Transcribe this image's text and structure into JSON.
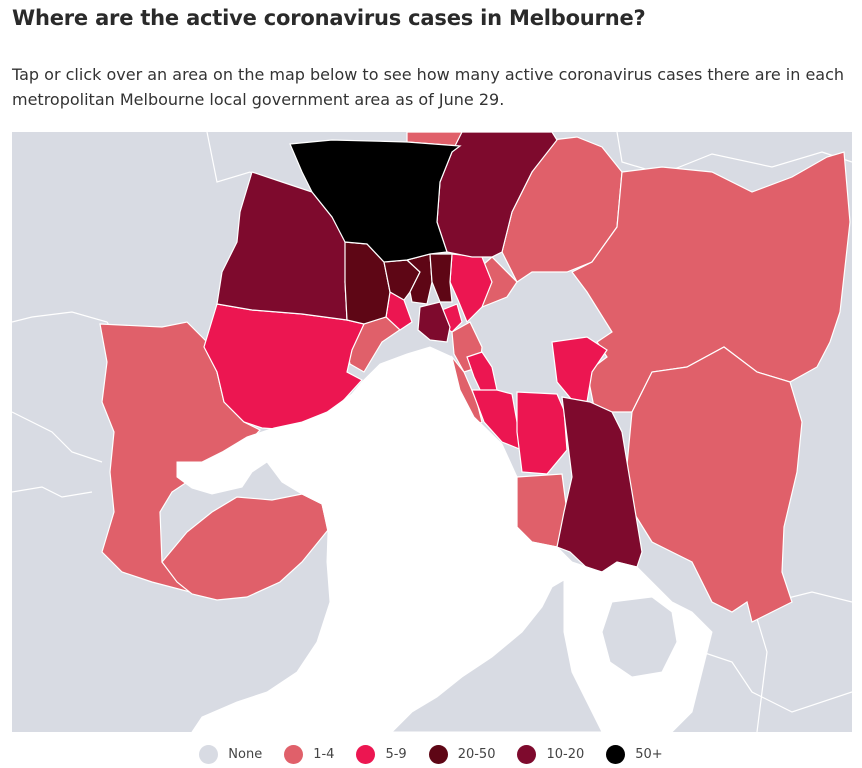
{
  "header": {
    "title": "Where are the active coronavirus cases in Melbourne?",
    "intro": "Tap or click over an area on the map below to see how many active coronavirus cases there are in each metropolitan Melbourne local government area as of June 29."
  },
  "map": {
    "background_color": "#d8dbe3",
    "water_color": "#ffffff",
    "categories": {
      "none": "#d8dbe3",
      "c1_4": "#e0606a",
      "c5_9": "#ec1651",
      "c10_20": "#7e0a2d",
      "c20_50": "#5e0615",
      "c50plus": "#000000"
    }
  },
  "legend": {
    "items": [
      {
        "label": "None",
        "color": "#d8dbe3"
      },
      {
        "label": "1-4",
        "color": "#e0606a"
      },
      {
        "label": "5-9",
        "color": "#ec1651"
      },
      {
        "label": "20-50",
        "color": "#5e0615"
      },
      {
        "label": "10-20",
        "color": "#7e0a2d"
      },
      {
        "label": "50+",
        "color": "#000000"
      }
    ]
  }
}
